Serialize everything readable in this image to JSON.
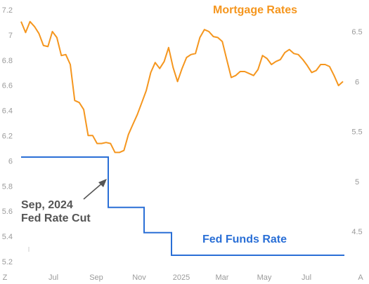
{
  "chart_data": {
    "type": "line",
    "grid": false,
    "x_ticks": [
      "Jul",
      "Sep",
      "Nov",
      "2025",
      "Mar",
      "May",
      "Jul"
    ],
    "left_axis": {
      "ticks": [
        "7.2",
        "7",
        "6.8",
        "6.6",
        "6.4",
        "6.2",
        "6",
        "5.8",
        "5.6",
        "5.4",
        "5.2"
      ],
      "range": [
        5.2,
        7.2
      ],
      "end_label": "Z"
    },
    "right_axis": {
      "ticks": [
        "6.5",
        "6",
        "5.5",
        "5",
        "4.5"
      ],
      "range": [
        4.05,
        6.75
      ],
      "end_label": "A"
    },
    "series": [
      {
        "name": "Mortgage Rates",
        "axis": "right",
        "color": "#f5961e",
        "values": [
          6.6,
          6.49,
          6.6,
          6.55,
          6.48,
          6.36,
          6.35,
          6.5,
          6.44,
          6.26,
          6.27,
          6.17,
          5.81,
          5.79,
          5.72,
          5.46,
          5.46,
          5.38,
          5.38,
          5.39,
          5.38,
          5.29,
          5.29,
          5.31,
          5.47,
          5.57,
          5.67,
          5.79,
          5.91,
          6.09,
          6.19,
          6.13,
          6.2,
          6.34,
          6.14,
          6.0,
          6.13,
          6.24,
          6.27,
          6.28,
          6.44,
          6.52,
          6.5,
          6.45,
          6.44,
          6.4,
          6.22,
          6.04,
          6.06,
          6.1,
          6.1,
          6.08,
          6.06,
          6.12,
          6.26,
          6.23,
          6.17,
          6.2,
          6.22,
          6.29,
          6.32,
          6.28,
          6.27,
          6.22,
          6.16,
          6.09,
          6.11,
          6.17,
          6.17,
          6.15,
          6.06,
          5.96,
          6.0
        ]
      },
      {
        "name": "Fed Funds Rate",
        "axis": "left",
        "color": "#2a6fd6",
        "steps": [
          {
            "value": 6.03,
            "segment": 0
          },
          {
            "value": 5.63,
            "segment": 1
          },
          {
            "value": 5.43,
            "segment": 2
          },
          {
            "value": 5.25,
            "segment": 3
          }
        ]
      }
    ],
    "annotation": {
      "lines": [
        "Sep, 2024",
        "Fed Rate Cut"
      ]
    }
  }
}
